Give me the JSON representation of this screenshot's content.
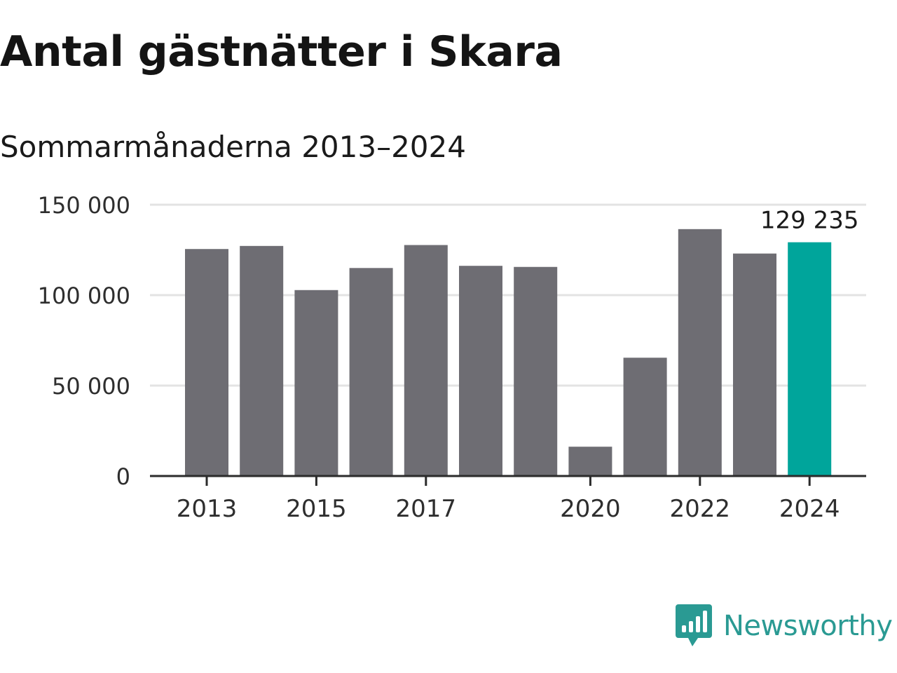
{
  "title": "Antal gästnätter i Skara",
  "subtitle": "Sommarmånaderna 2013–2024",
  "brand": {
    "name": "Newsworthy",
    "color": "#2a9a93",
    "icon": "bar-chart-speech-bubble-icon"
  },
  "colors": {
    "bar": "#6e6d73",
    "highlight": "#00a59b",
    "grid": "#e3e3e3",
    "axis": "#2b2b2b"
  },
  "chart_data": {
    "type": "bar",
    "categories": [
      "2013",
      "2014",
      "2015",
      "2016",
      "2017",
      "2018",
      "2019",
      "2020",
      "2021",
      "2022",
      "2023",
      "2024"
    ],
    "values": [
      125500,
      127200,
      102800,
      115000,
      127700,
      116200,
      115600,
      16200,
      65400,
      136500,
      123000,
      129235
    ],
    "x_tick_labels": [
      "2013",
      "2015",
      "2017",
      "2020",
      "2022",
      "2024"
    ],
    "y_ticks": [
      0,
      50000,
      100000,
      150000
    ],
    "y_tick_labels": [
      "0",
      "50 000",
      "100 000",
      "150 000"
    ],
    "ylim": [
      0,
      150000
    ],
    "highlight_index": 11,
    "highlight_label": "129 235",
    "grid": true,
    "legend": "none",
    "xlabel": "",
    "ylabel": ""
  }
}
